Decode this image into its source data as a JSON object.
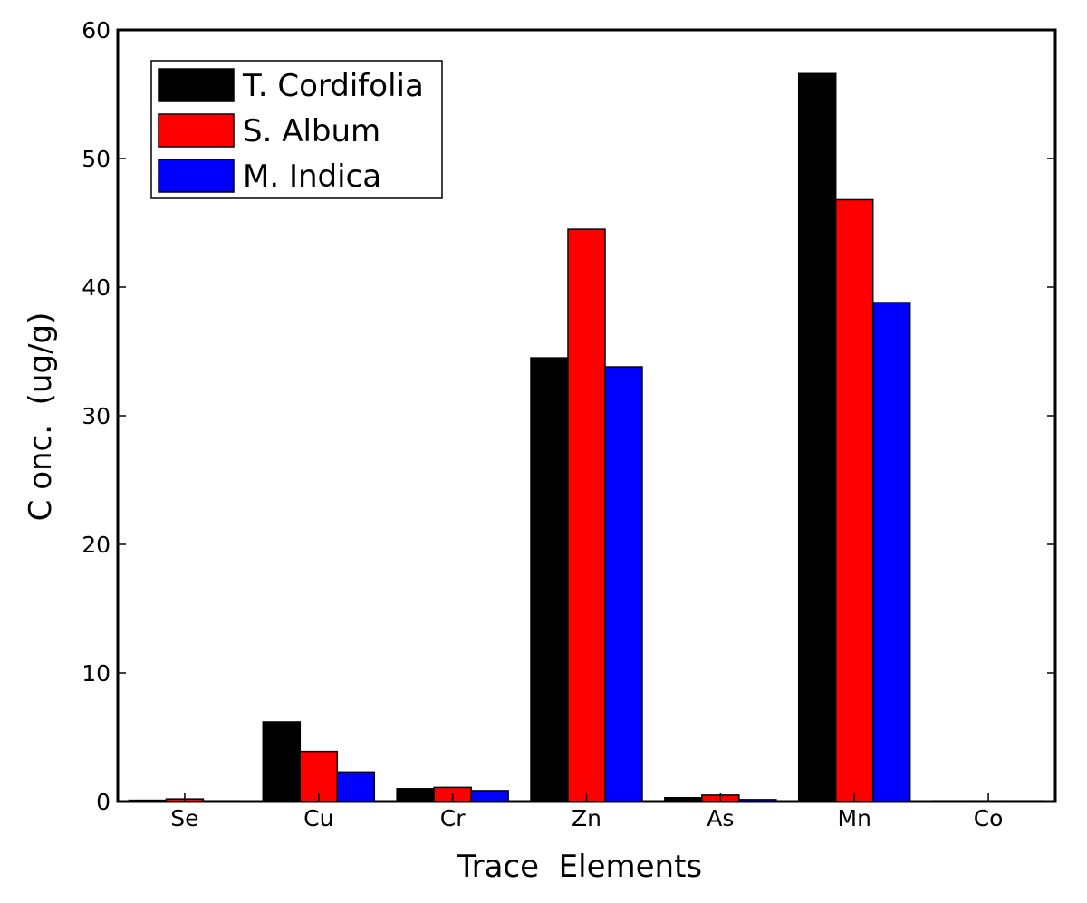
{
  "chart_data": {
    "type": "bar",
    "title": "",
    "xlabel": "Trace  Elements",
    "ylabel": "C onc.  (ug/g)",
    "categories": [
      "Se",
      "Cu",
      "Cr",
      "Zn",
      "As",
      "Mn",
      "Co"
    ],
    "series": [
      {
        "name": "T. Cordifolia",
        "color": "#000000",
        "values": [
          0.1,
          6.2,
          1.0,
          34.5,
          0.3,
          56.6,
          0.0
        ]
      },
      {
        "name": "S. Album",
        "color": "#ff0000",
        "values": [
          0.2,
          3.9,
          1.1,
          44.5,
          0.5,
          46.8,
          0.0
        ]
      },
      {
        "name": "M. Indica",
        "color": "#0000ff",
        "values": [
          0.05,
          2.3,
          0.85,
          33.8,
          0.15,
          38.8,
          0.0
        ]
      }
    ],
    "ylim": [
      0,
      60
    ],
    "yticks": [
      0,
      10,
      20,
      30,
      40,
      50,
      60
    ],
    "grid": false,
    "legend_position": "top-left"
  }
}
